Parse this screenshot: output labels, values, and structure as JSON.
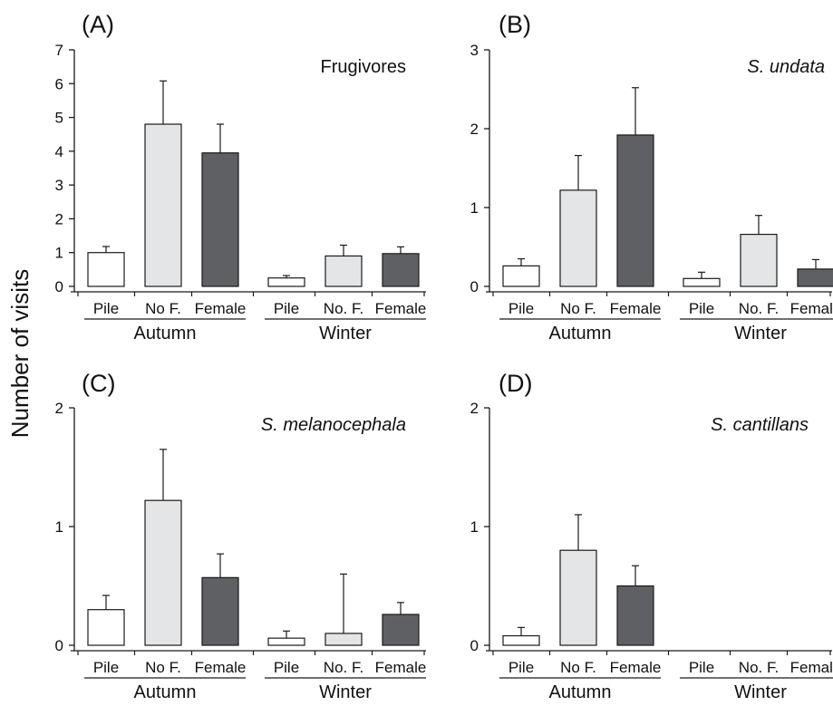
{
  "figure": {
    "ylabel": "Number of visits"
  },
  "colors": {
    "Pile": "#ffffff",
    "No F.": "#e4e5e7",
    "Female": "#5f6064",
    "outline": "#1a1a1a"
  },
  "chart_data": [
    {
      "id": "A",
      "type": "bar",
      "panel_label": "(A)",
      "title": "Frugivores",
      "title_italic": false,
      "ylim": [
        0,
        7
      ],
      "yticks": [
        "0",
        "1",
        "2",
        "3",
        "4",
        "5",
        "6",
        "7"
      ],
      "groups": [
        "Autumn",
        "Winter"
      ],
      "categories": [
        "Pile",
        "No F.",
        "Female",
        "Pile",
        "No. F.",
        "Female"
      ],
      "values": [
        1.0,
        4.8,
        3.95,
        0.25,
        0.9,
        0.97
      ],
      "errors": [
        0.18,
        1.28,
        0.85,
        0.07,
        0.32,
        0.2
      ],
      "series_keys": [
        "Pile",
        "No F.",
        "Female",
        "Pile",
        "No F.",
        "Female"
      ]
    },
    {
      "id": "B",
      "type": "bar",
      "panel_label": "(B)",
      "title": "S. undata",
      "title_italic": true,
      "ylim": [
        0,
        3
      ],
      "yticks": [
        "0",
        "1",
        "2",
        "3"
      ],
      "groups": [
        "Autumn",
        "Winter"
      ],
      "categories": [
        "Pile",
        "No F.",
        "Female",
        "Pile",
        "No. F.",
        "Female"
      ],
      "values": [
        0.26,
        1.22,
        1.92,
        0.1,
        0.66,
        0.22
      ],
      "errors": [
        0.09,
        0.44,
        0.6,
        0.08,
        0.24,
        0.12
      ],
      "series_keys": [
        "Pile",
        "No F.",
        "Female",
        "Pile",
        "No F.",
        "Female"
      ]
    },
    {
      "id": "C",
      "type": "bar",
      "panel_label": "(C)",
      "title": "S. melanocephala",
      "title_italic": true,
      "ylim": [
        0,
        2
      ],
      "yticks": [
        "0",
        "1",
        "2"
      ],
      "groups": [
        "Autumn",
        "Winter"
      ],
      "categories": [
        "Pile",
        "No F.",
        "Female",
        "Pile",
        "No. F.",
        "Female"
      ],
      "values": [
        0.3,
        1.22,
        0.57,
        0.06,
        0.1,
        0.26
      ],
      "errors": [
        0.12,
        0.43,
        0.2,
        0.06,
        0.5,
        0.1
      ],
      "series_keys": [
        "Pile",
        "No F.",
        "Female",
        "Pile",
        "No F.",
        "Female"
      ]
    },
    {
      "id": "D",
      "type": "bar",
      "panel_label": "(D)",
      "title": "S. cantillans",
      "title_italic": true,
      "ylim": [
        0,
        2
      ],
      "yticks": [
        "0",
        "1",
        "2"
      ],
      "groups": [
        "Autumn",
        "Winter"
      ],
      "categories": [
        "Pile",
        "No F.",
        "Female",
        "Pile",
        "No. F.",
        "Female"
      ],
      "values": [
        0.08,
        0.8,
        0.5,
        0,
        0,
        0
      ],
      "errors": [
        0.07,
        0.3,
        0.17,
        0,
        0,
        0
      ],
      "series_keys": [
        "Pile",
        "No F.",
        "Female",
        "Pile",
        "No F.",
        "Female"
      ]
    }
  ]
}
